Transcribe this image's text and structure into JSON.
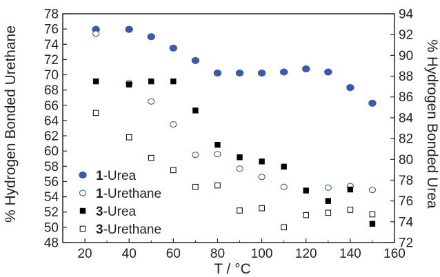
{
  "chart_data": {
    "type": "scatter",
    "xlabel": "T / °C",
    "ylabel_left": "% Hydrogen Bonded Urethane",
    "ylabel_right": "% Hydrogen Bonded Urea",
    "xlim": [
      10,
      160
    ],
    "ylim_left": [
      48,
      78
    ],
    "ylim_right": [
      72,
      94
    ],
    "x_ticks": [
      20,
      40,
      60,
      80,
      100,
      120,
      140,
      160
    ],
    "y_left_ticks": [
      48,
      50,
      52,
      54,
      56,
      58,
      60,
      62,
      64,
      66,
      68,
      70,
      72,
      74,
      76,
      78
    ],
    "y_right_ticks": [
      72,
      74,
      76,
      78,
      80,
      82,
      84,
      86,
      88,
      90,
      92,
      94
    ],
    "grid": false,
    "legend_position": "bottom-left",
    "series": [
      {
        "id": "1-urea",
        "name_bold": "1",
        "name_rest": "-Urea",
        "axis": "right",
        "marker": "filled-circle",
        "color": "#3a5ba8",
        "x": [
          25,
          40,
          50,
          60,
          70,
          80,
          90,
          100,
          110,
          120,
          130,
          140,
          150
        ],
        "y": [
          92.5,
          92.5,
          91.8,
          90.7,
          89.5,
          88.3,
          88.3,
          88.3,
          88.4,
          88.7,
          88.4,
          86.9,
          85.4
        ]
      },
      {
        "id": "1-urethane",
        "name_bold": "1",
        "name_rest": "-Urethane",
        "axis": "left",
        "marker": "open-circle",
        "color": "#3a5ba8",
        "x": [
          25,
          40,
          50,
          60,
          70,
          80,
          90,
          100,
          110,
          130,
          140,
          150
        ],
        "y": [
          75.4,
          68.9,
          66.5,
          63.5,
          59.5,
          59.6,
          57.7,
          56.6,
          55.3,
          55.2,
          55.4,
          54.9
        ]
      },
      {
        "id": "3-urea",
        "name_bold": "3",
        "name_rest": "-Urea",
        "axis": "right",
        "marker": "filled-square",
        "color": "#000000",
        "x": [
          25,
          40,
          50,
          60,
          70,
          80,
          90,
          100,
          110,
          120,
          130,
          140,
          150
        ],
        "y": [
          87.5,
          87.2,
          87.5,
          87.5,
          84.7,
          81.4,
          80.2,
          79.8,
          79.3,
          77.0,
          76.0,
          77.1,
          73.8
        ]
      },
      {
        "id": "3-urethane",
        "name_bold": "3",
        "name_rest": "-Urethane",
        "axis": "left",
        "marker": "open-square",
        "color": "#000000",
        "x": [
          25,
          40,
          50,
          60,
          70,
          80,
          90,
          100,
          110,
          120,
          130,
          140,
          150
        ],
        "y": [
          65.0,
          61.8,
          59.1,
          57.5,
          55.3,
          55.5,
          52.2,
          52.5,
          50.0,
          51.6,
          51.9,
          52.3,
          51.7
        ]
      }
    ]
  }
}
